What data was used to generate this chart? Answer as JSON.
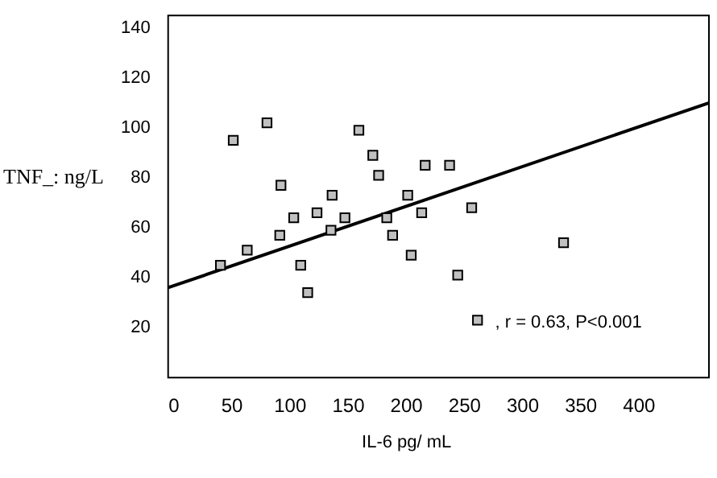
{
  "chart_data": {
    "type": "scatter",
    "xlabel": "IL-6 pg/ mL",
    "ylabel": "TNF_: ng/L",
    "xlim": [
      -5,
      460
    ],
    "ylim": [
      0,
      145
    ],
    "xticks": [
      0,
      50,
      100,
      150,
      200,
      250,
      300,
      350,
      400
    ],
    "yticks": [
      20,
      40,
      60,
      80,
      100,
      120,
      140
    ],
    "grid": false,
    "legend": false,
    "annotations": [
      {
        "text": ", r = 0.63, P<0.001",
        "x": 265,
        "y": 22
      }
    ],
    "series": [
      {
        "type": "scatter",
        "marker": "square",
        "color": "#c0c0c0",
        "x": [
          51,
          80,
          92,
          103,
          123,
          136,
          91,
          135,
          147,
          159,
          171,
          63,
          176,
          216,
          237,
          201,
          183,
          188,
          213,
          256,
          335,
          204,
          40,
          109,
          115,
          244,
          261
        ],
        "values": [
          95,
          102,
          77,
          64,
          66,
          73,
          57,
          59,
          64,
          99,
          89,
          51,
          81,
          85,
          85,
          73,
          64,
          57,
          66,
          68,
          54,
          49,
          45,
          45,
          34,
          41,
          23
        ]
      },
      {
        "type": "line",
        "color": "#000000",
        "x": [
          -5,
          460
        ],
        "values": [
          36,
          110
        ]
      }
    ]
  }
}
